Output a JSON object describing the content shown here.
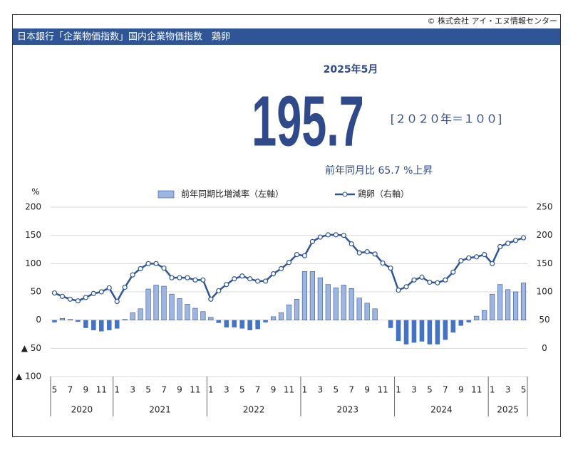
{
  "header": {
    "copyright": "© 株式会社 アイ・エヌ情報センター",
    "title": "日本銀行「企業物価指数」国内企業物価指数　鶏卵",
    "period": "2025年5月",
    "value": 195.7,
    "base": "[２０２０年＝１００]",
    "yoy_label": "前年同月比",
    "yoy": 65.7,
    "yoy_unit": "%上昇"
  },
  "chart_data": {
    "type": "bar_line",
    "y_unit": "%",
    "categories": [
      "5",
      null,
      "7",
      null,
      "9",
      null,
      "11",
      null,
      "1",
      null,
      "3",
      null,
      "5",
      null,
      "7",
      null,
      "9",
      null,
      "11",
      null,
      "1",
      null,
      "3",
      null,
      "5",
      null,
      "7",
      null,
      "9",
      null,
      "11",
      null,
      "1",
      null,
      "3",
      null,
      "5",
      null,
      "7",
      null,
      "9",
      null,
      "11",
      null,
      "1",
      null,
      "3",
      null,
      "5",
      null,
      "7",
      null,
      "9",
      null,
      "11",
      null,
      "1",
      null,
      "3",
      null,
      "5"
    ],
    "groups": [
      "2020",
      "2021",
      "2022",
      "2023",
      "2024",
      "2025"
    ],
    "series": [
      {
        "name": "前年同期比増減率（左軸）",
        "type": "bar",
        "color": "#9db5e0",
        "edge_color": "#2f5597",
        "negative_color": "#4472c4",
        "values": [
          -4,
          3,
          1,
          -3,
          -14,
          -18,
          -20,
          -18,
          -15,
          1,
          13,
          20,
          55,
          62,
          60,
          46,
          38,
          28,
          21,
          15,
          5,
          -5,
          -13,
          -13,
          -15,
          -18,
          -16,
          -4,
          6,
          13,
          27,
          37,
          86,
          86,
          75,
          63,
          57,
          62,
          56,
          39,
          30,
          20,
          0,
          -14,
          -37,
          -43,
          -40,
          -38,
          -43,
          -43,
          -35,
          -22,
          -10,
          -4,
          7,
          17,
          46,
          63,
          54,
          50,
          65.7
        ]
      },
      {
        "name": "鶏卵（右軸）",
        "type": "line",
        "axis": "y2",
        "color": "#2f5597",
        "values": [
          98,
          92,
          87,
          84,
          90,
          97,
          100,
          107,
          83,
          108,
          130,
          141,
          150,
          150,
          142,
          125,
          125,
          125,
          121,
          121,
          87,
          102,
          113,
          123,
          128,
          123,
          119,
          119,
          132,
          141,
          152,
          166,
          164,
          189,
          197,
          201,
          201,
          200,
          185,
          169,
          171,
          167,
          151,
          142,
          103,
          109,
          121,
          126,
          117,
          116,
          121,
          135,
          155,
          160,
          162,
          166,
          150,
          180,
          186,
          191,
          195.7
        ]
      }
    ],
    "ylim": [
      -100,
      200
    ],
    "yticks": [
      {
        "value": -100,
        "label": "▲ 100"
      },
      {
        "value": -50,
        "label": "▲ 50"
      },
      0,
      50,
      100,
      150,
      200
    ],
    "y2lim": [
      -50,
      250
    ],
    "y2ticks": [
      0,
      50,
      100,
      150,
      200,
      250
    ],
    "grid": true
  }
}
